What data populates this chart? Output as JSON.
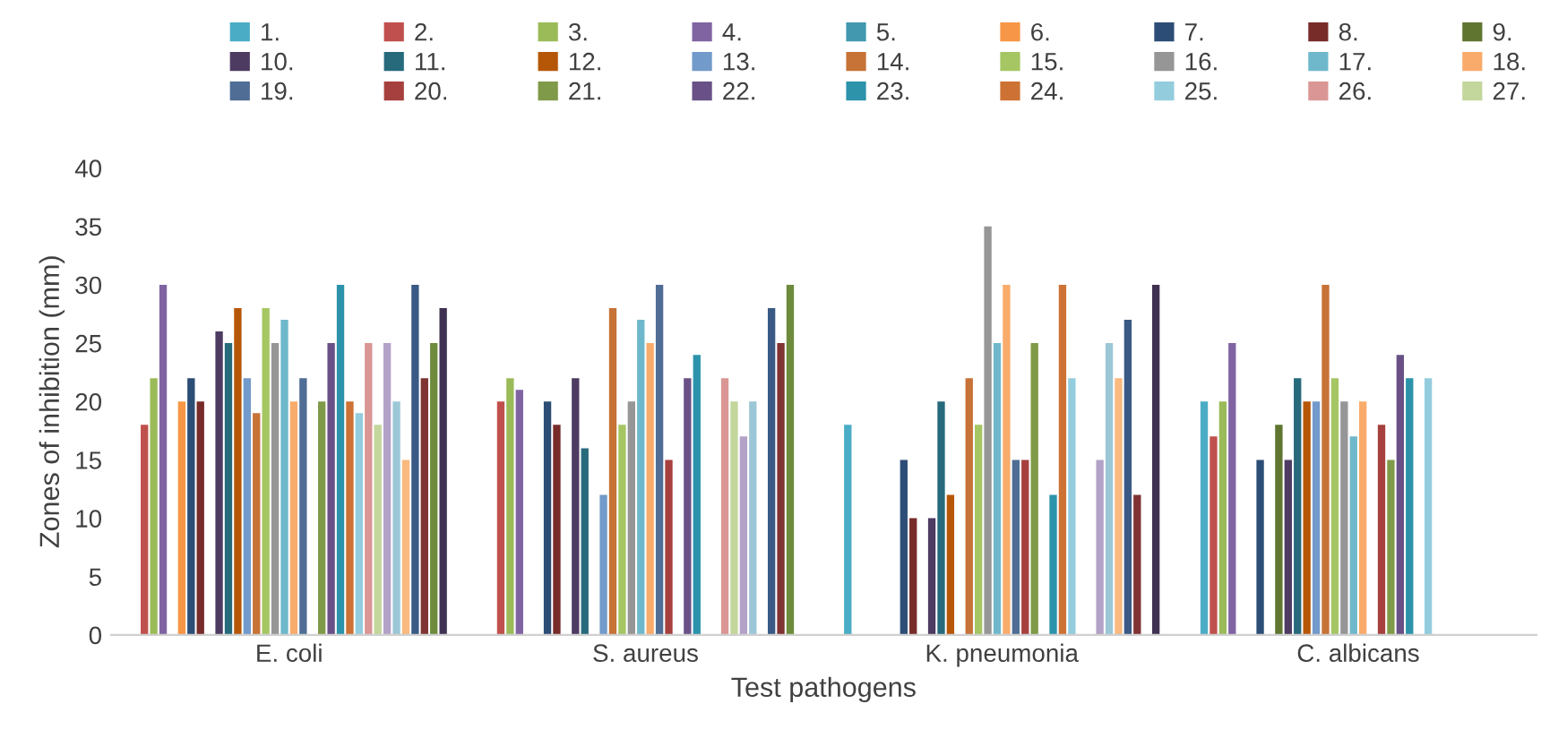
{
  "chart_data": {
    "type": "bar",
    "xlabel": "Test pathogens",
    "ylabel": "Zones of inhibition (mm)",
    "categories": [
      "E. coli",
      "S. aureus",
      "K. pneumonia",
      "C. albicans"
    ],
    "ylim": [
      0,
      40
    ],
    "yticks": [
      0,
      5,
      10,
      15,
      20,
      25,
      30,
      35,
      40
    ],
    "grid": false,
    "legend": "top",
    "series": [
      {
        "name": "1.",
        "color": "#4bacc6",
        "values": [
          null,
          null,
          18,
          20
        ]
      },
      {
        "name": "2.",
        "color": "#c0504d",
        "values": [
          18,
          20,
          null,
          17
        ]
      },
      {
        "name": "3.",
        "color": "#9bbb59",
        "values": [
          22,
          22,
          null,
          20
        ]
      },
      {
        "name": "4.",
        "color": "#8064a2",
        "values": [
          30,
          21,
          null,
          25
        ]
      },
      {
        "name": "5.",
        "color": "#4198af",
        "values": [
          null,
          null,
          null,
          null
        ]
      },
      {
        "name": "6.",
        "color": "#f79646",
        "values": [
          20,
          null,
          null,
          null
        ]
      },
      {
        "name": "7.",
        "color": "#2c4d75",
        "values": [
          22,
          20,
          15,
          15
        ]
      },
      {
        "name": "8.",
        "color": "#772c2a",
        "values": [
          20,
          18,
          10,
          null
        ]
      },
      {
        "name": "9.",
        "color": "#5f7530",
        "values": [
          null,
          null,
          null,
          18
        ]
      },
      {
        "name": "10.",
        "color": "#4d3b62",
        "values": [
          26,
          22,
          10,
          15
        ]
      },
      {
        "name": "11.",
        "color": "#276a7c",
        "values": [
          25,
          16,
          20,
          22
        ]
      },
      {
        "name": "12.",
        "color": "#b65708",
        "values": [
          28,
          null,
          12,
          20
        ]
      },
      {
        "name": "13.",
        "color": "#729aca",
        "values": [
          22,
          12,
          null,
          20
        ]
      },
      {
        "name": "14.",
        "color": "#c77236",
        "values": [
          19,
          28,
          22,
          30
        ]
      },
      {
        "name": "15.",
        "color": "#a5c663",
        "values": [
          28,
          18,
          18,
          22
        ]
      },
      {
        "name": "16.",
        "color": "#969696",
        "values": [
          25,
          20,
          35,
          20
        ]
      },
      {
        "name": "17.",
        "color": "#6fb8cc",
        "values": [
          27,
          27,
          25,
          17
        ]
      },
      {
        "name": "18.",
        "color": "#f9ab6b",
        "values": [
          20,
          25,
          30,
          20
        ]
      },
      {
        "name": "19.",
        "color": "#4f6d95",
        "values": [
          22,
          30,
          15,
          null
        ]
      },
      {
        "name": "20.",
        "color": "#a6403e",
        "values": [
          null,
          15,
          15,
          18
        ]
      },
      {
        "name": "21.",
        "color": "#7f9a48",
        "values": [
          20,
          null,
          25,
          15
        ]
      },
      {
        "name": "22.",
        "color": "#695187",
        "values": [
          25,
          22,
          null,
          24
        ]
      },
      {
        "name": "23.",
        "color": "#2c93ab",
        "values": [
          30,
          24,
          12,
          22
        ]
      },
      {
        "name": "24.",
        "color": "#cd7234",
        "values": [
          20,
          null,
          30,
          null
        ]
      },
      {
        "name": "25.",
        "color": "#93cddd",
        "values": [
          19,
          null,
          22,
          22
        ]
      },
      {
        "name": "26.",
        "color": "#d99694",
        "values": [
          25,
          22,
          null,
          null
        ]
      },
      {
        "name": "27.",
        "color": "#c3d69b",
        "values": [
          18,
          20,
          null,
          null
        ]
      },
      {
        "color": "#b3a2c7",
        "values": [
          25,
          17,
          15,
          null
        ]
      },
      {
        "color": "#9cc7d6",
        "values": [
          20,
          20,
          25,
          null
        ]
      },
      {
        "color": "#f9b97f",
        "values": [
          15,
          null,
          22,
          null
        ]
      },
      {
        "color": "#3a5a85",
        "values": [
          30,
          28,
          27,
          null
        ]
      },
      {
        "color": "#7f3333",
        "values": [
          22,
          25,
          12,
          null
        ]
      },
      {
        "color": "#6e8b3d",
        "values": [
          25,
          30,
          null,
          null
        ]
      },
      {
        "color": "#3f3151",
        "values": [
          28,
          null,
          30,
          null
        ]
      }
    ]
  }
}
